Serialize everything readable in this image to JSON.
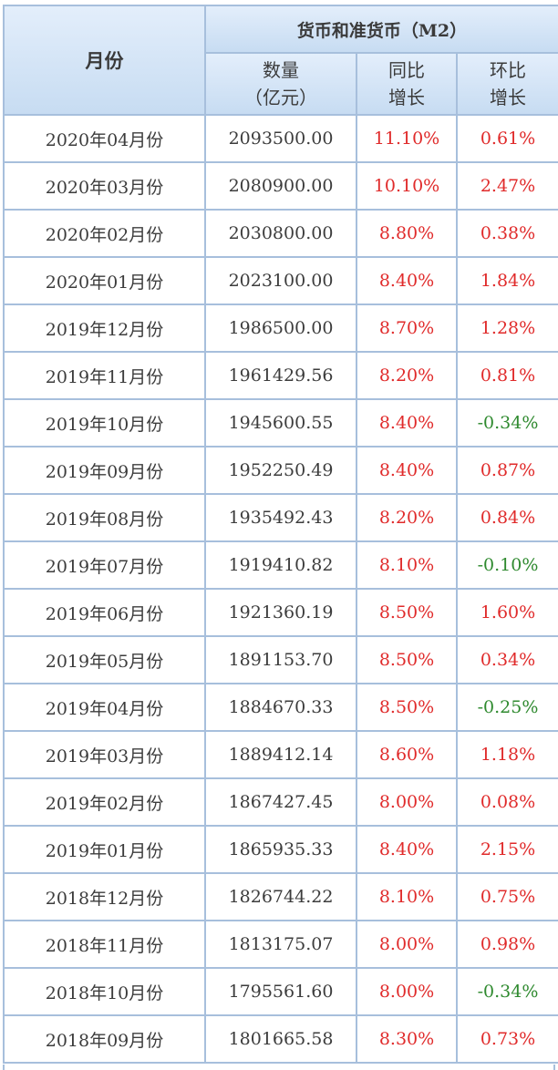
{
  "table": {
    "header": {
      "month": "月份",
      "group": "货币和准货币（M2）",
      "amount_line1": "数量",
      "amount_line2": "（亿元）",
      "yoy_line1": "同比",
      "yoy_line2": "增长",
      "mom_line1": "环比",
      "mom_line2": "增长"
    },
    "colors": {
      "positive": "#e02a2a",
      "negative": "#2f8a2f",
      "border": "#a7bfdc",
      "header_bg": "#d5e5f7"
    },
    "rows": [
      {
        "month": "2020年04月份",
        "amount": "2093500.00",
        "yoy": "11.10%",
        "mom": "0.61%"
      },
      {
        "month": "2020年03月份",
        "amount": "2080900.00",
        "yoy": "10.10%",
        "mom": "2.47%"
      },
      {
        "month": "2020年02月份",
        "amount": "2030800.00",
        "yoy": "8.80%",
        "mom": "0.38%"
      },
      {
        "month": "2020年01月份",
        "amount": "2023100.00",
        "yoy": "8.40%",
        "mom": "1.84%"
      },
      {
        "month": "2019年12月份",
        "amount": "1986500.00",
        "yoy": "8.70%",
        "mom": "1.28%"
      },
      {
        "month": "2019年11月份",
        "amount": "1961429.56",
        "yoy": "8.20%",
        "mom": "0.81%"
      },
      {
        "month": "2019年10月份",
        "amount": "1945600.55",
        "yoy": "8.40%",
        "mom": "-0.34%"
      },
      {
        "month": "2019年09月份",
        "amount": "1952250.49",
        "yoy": "8.40%",
        "mom": "0.87%"
      },
      {
        "month": "2019年08月份",
        "amount": "1935492.43",
        "yoy": "8.20%",
        "mom": "0.84%"
      },
      {
        "month": "2019年07月份",
        "amount": "1919410.82",
        "yoy": "8.10%",
        "mom": "-0.10%"
      },
      {
        "month": "2019年06月份",
        "amount": "1921360.19",
        "yoy": "8.50%",
        "mom": "1.60%"
      },
      {
        "month": "2019年05月份",
        "amount": "1891153.70",
        "yoy": "8.50%",
        "mom": "0.34%"
      },
      {
        "month": "2019年04月份",
        "amount": "1884670.33",
        "yoy": "8.50%",
        "mom": "-0.25%"
      },
      {
        "month": "2019年03月份",
        "amount": "1889412.14",
        "yoy": "8.60%",
        "mom": "1.18%"
      },
      {
        "month": "2019年02月份",
        "amount": "1867427.45",
        "yoy": "8.00%",
        "mom": "0.08%"
      },
      {
        "month": "2019年01月份",
        "amount": "1865935.33",
        "yoy": "8.40%",
        "mom": "2.15%"
      },
      {
        "month": "2018年12月份",
        "amount": "1826744.22",
        "yoy": "8.10%",
        "mom": "0.75%"
      },
      {
        "month": "2018年11月份",
        "amount": "1813175.07",
        "yoy": "8.00%",
        "mom": "0.98%"
      },
      {
        "month": "2018年10月份",
        "amount": "1795561.60",
        "yoy": "8.00%",
        "mom": "-0.34%"
      },
      {
        "month": "2018年09月份",
        "amount": "1801665.58",
        "yoy": "8.30%",
        "mom": "0.73%"
      }
    ]
  }
}
